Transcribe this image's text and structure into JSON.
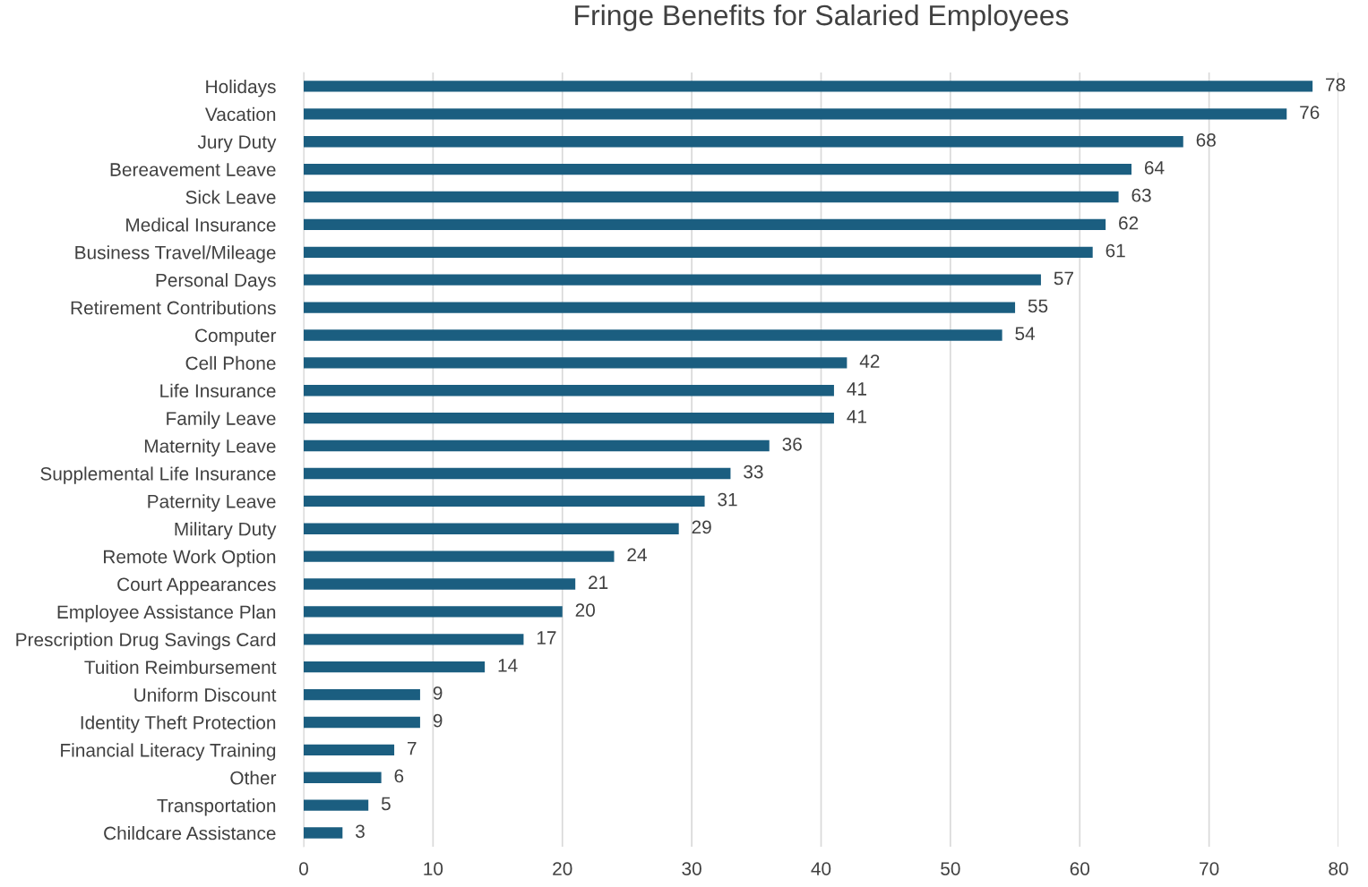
{
  "chart_data": {
    "type": "bar",
    "orientation": "horizontal",
    "title": "Fringe Benefits for Salaried Employees",
    "categories": [
      "Holidays",
      "Vacation",
      "Jury Duty",
      "Bereavement Leave",
      "Sick Leave",
      "Medical Insurance",
      "Business Travel/Mileage",
      "Personal Days",
      "Retirement Contributions",
      "Computer",
      "Cell Phone",
      "Life Insurance",
      "Family Leave",
      "Maternity Leave",
      "Supplemental Life Insurance",
      "Paternity Leave",
      "Military Duty",
      "Remote Work Option",
      "Court Appearances",
      "Employee Assistance Plan",
      "Prescription Drug Savings Card",
      "Tuition Reimbursement",
      "Uniform Discount",
      "Identity Theft Protection",
      "Financial Literacy Training",
      "Other",
      "Transportation",
      "Childcare Assistance"
    ],
    "values": [
      78,
      76,
      68,
      64,
      63,
      62,
      61,
      57,
      55,
      54,
      42,
      41,
      41,
      36,
      33,
      31,
      29,
      24,
      21,
      20,
      17,
      14,
      9,
      9,
      7,
      6,
      5,
      3
    ],
    "color": "#1b5e80",
    "xlim": [
      0,
      80
    ],
    "xticks": [
      0,
      10,
      20,
      30,
      40,
      50,
      60,
      70,
      80
    ],
    "grid": "x",
    "data_labels": true,
    "legend": false
  }
}
